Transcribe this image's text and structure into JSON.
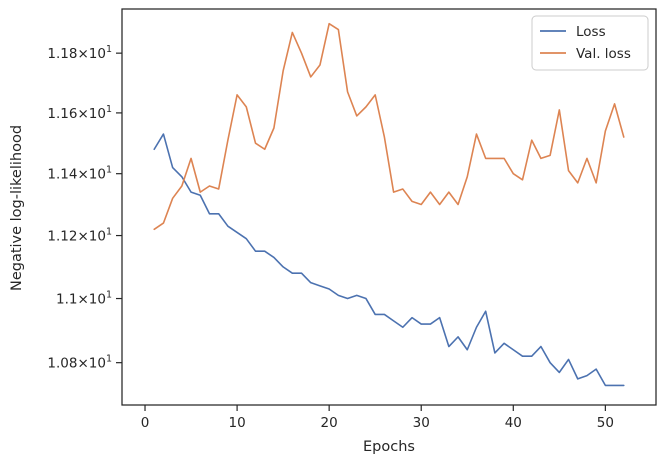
{
  "chart_data": {
    "type": "line",
    "title": "",
    "xlabel": "Epochs",
    "ylabel": "Negative log-likelihood",
    "yscale": "log",
    "xlim": [
      -2.5,
      55.5
    ],
    "ylim": [
      10.67,
      11.95
    ],
    "grid": false,
    "legend_position": "top-right",
    "x_ticks": [
      0,
      10,
      20,
      30,
      40,
      50
    ],
    "x_tick_labels": [
      "0",
      "10",
      "20",
      "30",
      "40",
      "50"
    ],
    "y_ticks": [
      10.8,
      11.0,
      11.2,
      11.4,
      11.6,
      11.8
    ],
    "y_tick_labels": [
      {
        "mantissa": "1.08",
        "base": "10",
        "exp": "1"
      },
      {
        "mantissa": "1.1",
        "base": "10",
        "exp": "1"
      },
      {
        "mantissa": "1.12",
        "base": "10",
        "exp": "1"
      },
      {
        "mantissa": "1.14",
        "base": "10",
        "exp": "1"
      },
      {
        "mantissa": "1.16",
        "base": "10",
        "exp": "1"
      },
      {
        "mantissa": "1.18",
        "base": "10",
        "exp": "1"
      }
    ],
    "times_sign": "×",
    "x": [
      1,
      2,
      3,
      4,
      5,
      6,
      7,
      8,
      9,
      10,
      11,
      12,
      13,
      14,
      15,
      16,
      17,
      18,
      19,
      20,
      21,
      22,
      23,
      24,
      25,
      26,
      27,
      28,
      29,
      30,
      31,
      32,
      33,
      34,
      35,
      36,
      37,
      38,
      39,
      40,
      41,
      42,
      43,
      44,
      45,
      46,
      47,
      48,
      49,
      50,
      51,
      52
    ],
    "series": [
      {
        "name": "Loss",
        "color": "#4c72b0",
        "values": [
          11.48,
          11.53,
          11.42,
          11.39,
          11.34,
          11.33,
          11.27,
          11.27,
          11.23,
          11.21,
          11.19,
          11.15,
          11.15,
          11.13,
          11.1,
          11.08,
          11.08,
          11.05,
          11.04,
          11.03,
          11.01,
          11.0,
          11.01,
          11.0,
          10.95,
          10.95,
          10.93,
          10.91,
          10.94,
          10.92,
          10.92,
          10.94,
          10.85,
          10.88,
          10.84,
          10.91,
          10.96,
          10.83,
          10.86,
          10.84,
          10.82,
          10.82,
          10.85,
          10.8,
          10.77,
          10.81,
          10.75,
          10.76,
          10.78,
          10.73,
          10.73,
          10.73
        ]
      },
      {
        "name": "Val. loss",
        "color": "#dd8452",
        "values": [
          11.22,
          11.24,
          11.32,
          11.36,
          11.45,
          11.34,
          11.36,
          11.35,
          11.51,
          11.66,
          11.62,
          11.5,
          11.48,
          11.55,
          11.74,
          11.87,
          11.8,
          11.72,
          11.76,
          11.9,
          11.88,
          11.67,
          11.59,
          11.62,
          11.66,
          11.52,
          11.34,
          11.35,
          11.31,
          11.3,
          11.34,
          11.3,
          11.34,
          11.3,
          11.39,
          11.53,
          11.45,
          11.45,
          11.45,
          11.4,
          11.38,
          11.51,
          11.45,
          11.46,
          11.61,
          11.41,
          11.37,
          11.45,
          11.37,
          11.54,
          11.63,
          11.52
        ]
      }
    ]
  }
}
